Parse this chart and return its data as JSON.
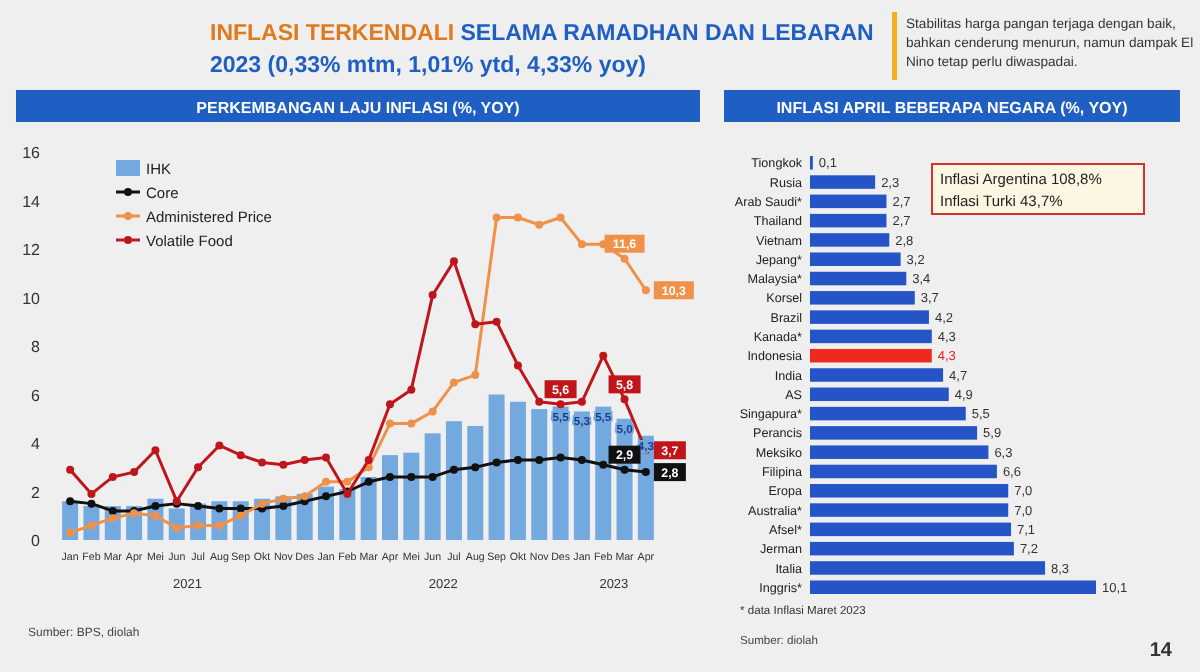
{
  "chart_data": [
    {
      "type": "other",
      "title": "INFLASI TERKENDALI",
      "subtitle": "SELAMA RAMADHAN DAN LEBARAN 2023 (0,33% mtm, 1,01% ytd, 4,33% yoy)",
      "annotations": [
        "Stabilitas harga pangan terjaga dengan baik, bahkan cenderung menurun, namun dampak El Nino tetap perlu diwaspadai.",
        "14"
      ]
    },
    {
      "type": "bar",
      "title": "PERKEMBANGAN LAJU INFLASI (%, YOY)",
      "categories": [
        "Jan",
        "Feb",
        "Mar",
        "Apr",
        "Mei",
        "Jun",
        "Jul",
        "Aug",
        "Sep",
        "Okt",
        "Nov",
        "Des",
        "Jan",
        "Feb",
        "Mar",
        "Apr",
        "Mei",
        "Jun",
        "Jul",
        "Aug",
        "Sep",
        "Okt",
        "Nov",
        "Des",
        "Jan",
        "Feb",
        "Mar",
        "Apr"
      ],
      "series": [
        {
          "name": "IHK",
          "type": "bar",
          "color": "#74a9df",
          "values": [
            1.6,
            1.4,
            1.4,
            1.4,
            1.7,
            1.3,
            1.5,
            1.6,
            1.6,
            1.7,
            1.8,
            1.9,
            2.2,
            2.1,
            2.6,
            3.5,
            3.6,
            4.4,
            4.9,
            4.7,
            6.0,
            5.7,
            5.4,
            5.5,
            5.3,
            5.5,
            5.0,
            4.3
          ],
          "value_labels": [
            null,
            null,
            null,
            null,
            null,
            null,
            null,
            null,
            null,
            null,
            null,
            null,
            null,
            null,
            null,
            null,
            null,
            null,
            null,
            null,
            null,
            null,
            null,
            "5,5",
            "5,3",
            "5,5",
            "5,0",
            "4,3"
          ]
        },
        {
          "name": "Core",
          "type": "line",
          "color": "#111111",
          "values": [
            1.6,
            1.5,
            1.2,
            1.2,
            1.4,
            1.5,
            1.4,
            1.3,
            1.3,
            1.3,
            1.4,
            1.6,
            1.8,
            2.0,
            2.4,
            2.6,
            2.6,
            2.6,
            2.9,
            3.0,
            3.2,
            3.3,
            3.3,
            3.4,
            3.3,
            3.1,
            2.9,
            2.8
          ],
          "value_labels": [
            null,
            null,
            null,
            null,
            null,
            null,
            null,
            null,
            null,
            null,
            null,
            null,
            null,
            null,
            null,
            null,
            null,
            null,
            null,
            null,
            null,
            null,
            null,
            null,
            null,
            null,
            "2,9",
            "2,8"
          ]
        },
        {
          "name": "Administered Price",
          "type": "line",
          "color": "#f0914a",
          "values": [
            0.3,
            0.6,
            0.9,
            1.1,
            1.0,
            0.5,
            0.6,
            0.6,
            1.0,
            1.5,
            1.7,
            1.8,
            2.4,
            2.4,
            3.0,
            4.8,
            4.8,
            5.3,
            6.5,
            6.8,
            13.3,
            13.3,
            13.0,
            13.3,
            12.2,
            12.2,
            11.6,
            10.3
          ],
          "value_labels": [
            null,
            null,
            null,
            null,
            null,
            null,
            null,
            null,
            null,
            null,
            null,
            null,
            null,
            null,
            null,
            null,
            null,
            null,
            null,
            null,
            null,
            null,
            null,
            null,
            null,
            null,
            "11,6",
            "10,3"
          ]
        },
        {
          "name": "Volatile Food",
          "type": "line",
          "color": "#c0161b",
          "values": [
            2.9,
            1.9,
            2.6,
            2.8,
            3.7,
            1.6,
            3.0,
            3.9,
            3.5,
            3.2,
            3.1,
            3.3,
            3.4,
            1.9,
            3.3,
            5.6,
            6.2,
            10.1,
            11.5,
            8.9,
            9.0,
            7.2,
            5.7,
            5.6,
            5.7,
            7.6,
            5.8,
            3.7
          ],
          "value_labels": [
            null,
            null,
            null,
            null,
            null,
            null,
            null,
            null,
            null,
            null,
            null,
            null,
            null,
            null,
            null,
            null,
            null,
            null,
            null,
            null,
            null,
            null,
            null,
            "5,6",
            null,
            null,
            "5,8",
            "3,7"
          ]
        }
      ],
      "ylim": [
        0,
        16
      ],
      "yticks": [
        0,
        2,
        4,
        6,
        8,
        10,
        12,
        14,
        16
      ],
      "legend": "top left",
      "marker": "circle",
      "annotations": [
        "2021",
        "2022",
        "2023",
        "Sumber: BPS, diolah"
      ]
    },
    {
      "type": "bar",
      "orientation": "horizontal",
      "title": "INFLASI APRIL BEBERAPA NEGARA (%, YOY)",
      "categories": [
        "Tiongkok",
        "Rusia",
        "Arab Saudi*",
        "Thailand",
        "Vietnam",
        "Jepang*",
        "Malaysia*",
        "Korsel",
        "Brazil",
        "Kanada*",
        "Indonesia",
        "India",
        "AS",
        "Singapura*",
        "Perancis",
        "Meksiko",
        "Filipina",
        "Eropa",
        "Australia*",
        "Afsel*",
        "Jerman",
        "Italia",
        "Inggris*"
      ],
      "values": [
        0.1,
        2.3,
        2.7,
        2.7,
        2.8,
        3.2,
        3.4,
        3.7,
        4.2,
        4.3,
        4.3,
        4.7,
        4.9,
        5.5,
        5.9,
        6.3,
        6.6,
        7.0,
        7.0,
        7.1,
        7.2,
        8.3,
        10.1
      ],
      "colors": [
        "#2454c6",
        "#2454c6",
        "#2454c6",
        "#2454c6",
        "#2454c6",
        "#2454c6",
        "#2454c6",
        "#2454c6",
        "#2454c6",
        "#2454c6",
        "#ee2a1f",
        "#2454c6",
        "#2454c6",
        "#2454c6",
        "#2454c6",
        "#2454c6",
        "#2454c6",
        "#2454c6",
        "#2454c6",
        "#2454c6",
        "#2454c6",
        "#2454c6",
        "#2454c6"
      ],
      "value_labels": [
        "0,1",
        "2,3",
        "2,7",
        "2,7",
        "2,8",
        "3,2",
        "3,4",
        "3,7",
        "4,2",
        "4,3",
        "4,3",
        "4,7",
        "4,9",
        "5,5",
        "5,9",
        "6,3",
        "6,6",
        "7,0",
        "7,0",
        "7,1",
        "7,2",
        "8,3",
        "10,1"
      ],
      "annotations": [
        "Inflasi Argentina 108,8%",
        "Inflasi Turki 43,7%",
        "* data Inflasi Maret 2023",
        "Sumber: diolah"
      ]
    }
  ]
}
